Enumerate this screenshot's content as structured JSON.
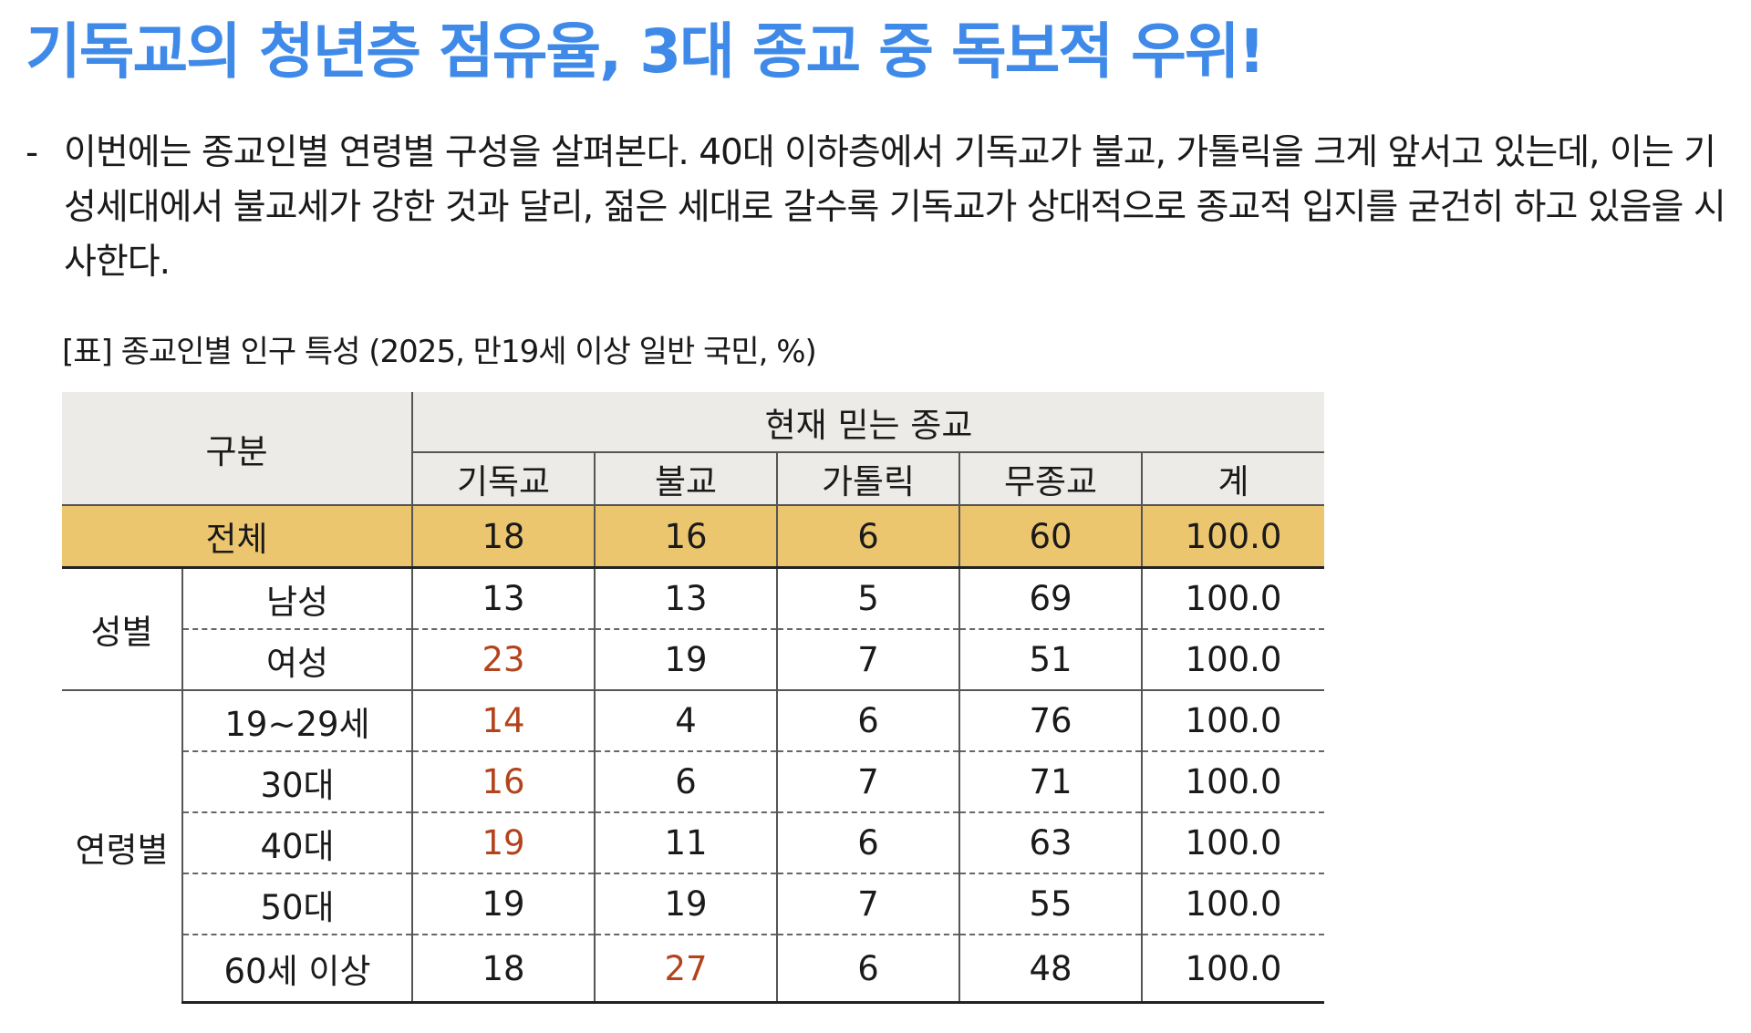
{
  "headline": "기독교의 청년층 점유율, 3대 종교 중 독보적 우위!",
  "bullet": {
    "dash": "-",
    "text": "이번에는 종교인별 연령별 구성을 살펴본다. 40대 이하층에서 기독교가 불교, 가톨릭을 크게 앞서고 있는데, 이는 기성세대에서 불교세가 강한 것과 달리, 젊은 세대로 갈수록 기독교가 상대적으로 종교적 입지를 굳건히 하고 있음을 시사한다."
  },
  "table": {
    "caption": "[표] 종교인별 인구 특성 (2025, 만19세 이상 일반 국민, %)",
    "header": {
      "category_label": "구분",
      "group_label": "현재 믿는 종교",
      "columns": [
        "기독교",
        "불교",
        "가톨릭",
        "무종교",
        "계"
      ]
    },
    "total_row": {
      "label": "전체",
      "values": [
        "18",
        "16",
        "6",
        "60",
        "100.0"
      ]
    },
    "gender_group": {
      "label": "성별",
      "rows": [
        {
          "label": "남성",
          "values": [
            "13",
            "13",
            "5",
            "69",
            "100.0"
          ]
        },
        {
          "label": "여성",
          "values": [
            "23",
            "19",
            "7",
            "51",
            "100.0"
          ]
        }
      ]
    },
    "age_group": {
      "label": "연령별",
      "rows": [
        {
          "label": "19~29세",
          "values": [
            "14",
            "4",
            "6",
            "76",
            "100.0"
          ]
        },
        {
          "label": "30대",
          "values": [
            "16",
            "6",
            "7",
            "71",
            "100.0"
          ]
        },
        {
          "label": "40대",
          "values": [
            "19",
            "11",
            "6",
            "63",
            "100.0"
          ]
        },
        {
          "label": "50대",
          "values": [
            "19",
            "19",
            "7",
            "55",
            "100.0"
          ]
        },
        {
          "label": "60세 이상",
          "values": [
            "18",
            "27",
            "6",
            "48",
            "100.0"
          ]
        }
      ]
    },
    "highlighted_cells": [
      "여성-기독교",
      "19~29세-기독교",
      "30대-기독교",
      "40대-기독교",
      "60세 이상-불교"
    ]
  },
  "colors": {
    "headline": "#3f8ae8",
    "header_bg": "#ecebe8",
    "total_row_bg": "#ecc66e",
    "highlight_text": "#b3431c"
  }
}
